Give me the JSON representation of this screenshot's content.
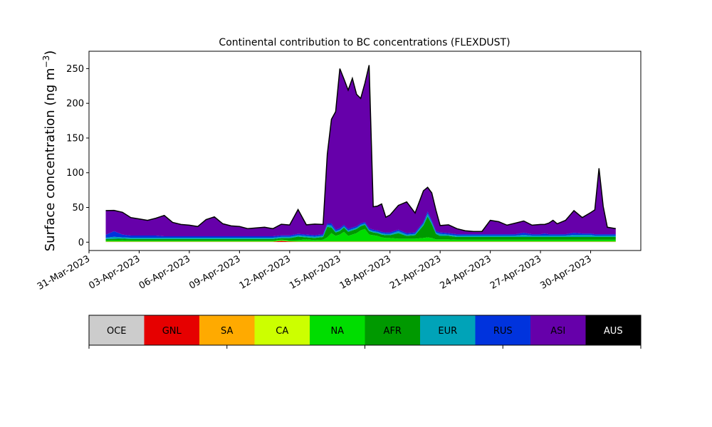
{
  "chart_data": {
    "type": "area",
    "stacked": true,
    "title": "Continental contribution to BC concentrations (FLEXDUST)",
    "ylabel": "Surface concentration (ng m",
    "ylabel_sup": "−3",
    "ylabel_close": ")",
    "xlabel": "",
    "x_range": [
      "2023-03-31",
      "2023-05-03"
    ],
    "ylim": [
      -12,
      275
    ],
    "yticks": [
      0,
      50,
      100,
      150,
      200,
      250
    ],
    "xticks": [
      {
        "date": "2023-03-31",
        "label": "31-Mar-2023"
      },
      {
        "date": "2023-04-03",
        "label": "03-Apr-2023"
      },
      {
        "date": "2023-04-06",
        "label": "06-Apr-2023"
      },
      {
        "date": "2023-04-09",
        "label": "09-Apr-2023"
      },
      {
        "date": "2023-04-12",
        "label": "12-Apr-2023"
      },
      {
        "date": "2023-04-15",
        "label": "15-Apr-2023"
      },
      {
        "date": "2023-04-18",
        "label": "18-Apr-2023"
      },
      {
        "date": "2023-04-21",
        "label": "21-Apr-2023"
      },
      {
        "date": "2023-04-24",
        "label": "24-Apr-2023"
      },
      {
        "date": "2023-04-27",
        "label": "27-Apr-2023"
      },
      {
        "date": "2023-04-30",
        "label": "30-Apr-2023"
      }
    ],
    "grid": false,
    "legend_placement": "bottom colorbar",
    "x": [
      "2023-04-01",
      "2023-04-01T12:00",
      "2023-04-02",
      "2023-04-02T12:00",
      "2023-04-03",
      "2023-04-03T12:00",
      "2023-04-04",
      "2023-04-04T12:00",
      "2023-04-05",
      "2023-04-05T12:00",
      "2023-04-06",
      "2023-04-06T12:00",
      "2023-04-07",
      "2023-04-07T12:00",
      "2023-04-08",
      "2023-04-08T12:00",
      "2023-04-09",
      "2023-04-09T12:00",
      "2023-04-10",
      "2023-04-10T12:00",
      "2023-04-11",
      "2023-04-11T12:00",
      "2023-04-12",
      "2023-04-12T12:00",
      "2023-04-13",
      "2023-04-13T12:00",
      "2023-04-14",
      "2023-04-14T06:00",
      "2023-04-14T12:00",
      "2023-04-14T18:00",
      "2023-04-15",
      "2023-04-15T06:00",
      "2023-04-15T12:00",
      "2023-04-15T18:00",
      "2023-04-16",
      "2023-04-16T06:00",
      "2023-04-16T12:00",
      "2023-04-16T18:00",
      "2023-04-17",
      "2023-04-17T06:00",
      "2023-04-17T12:00",
      "2023-04-17T18:00",
      "2023-04-18",
      "2023-04-18T12:00",
      "2023-04-19",
      "2023-04-19T12:00",
      "2023-04-20",
      "2023-04-20T06:00",
      "2023-04-20T12:00",
      "2023-04-20T18:00",
      "2023-04-21",
      "2023-04-21T12:00",
      "2023-04-22",
      "2023-04-22T12:00",
      "2023-04-23",
      "2023-04-23T12:00",
      "2023-04-24",
      "2023-04-24T12:00",
      "2023-04-25",
      "2023-04-25T12:00",
      "2023-04-26",
      "2023-04-26T12:00",
      "2023-04-27",
      "2023-04-27T06:00",
      "2023-04-27T12:00",
      "2023-04-27T18:00",
      "2023-04-28",
      "2023-04-28T12:00",
      "2023-04-29",
      "2023-04-29T12:00",
      "2023-04-30",
      "2023-04-30T06:00",
      "2023-04-30T12:00",
      "2023-04-30T18:00",
      "2023-05-01",
      "2023-05-01T12:00"
    ],
    "series": [
      {
        "name": "OCE",
        "color": "#cccccc",
        "values": [
          0.3,
          0.3,
          0.3,
          0.3,
          0.3,
          0.3,
          0.3,
          0.3,
          0.3,
          0.3,
          0.3,
          0.3,
          0.3,
          0.3,
          0.3,
          0.3,
          0.3,
          0.3,
          0.3,
          0.3,
          0.3,
          0.3,
          0.3,
          0.3,
          0.3,
          0.3,
          0.3,
          0.3,
          0.3,
          0.3,
          0.3,
          0.3,
          0.3,
          0.3,
          0.3,
          0.3,
          0.3,
          0.3,
          0.3,
          0.3,
          0.3,
          0.3,
          0.3,
          0.3,
          0.3,
          0.3,
          0.3,
          0.3,
          0.3,
          0.3,
          0.3,
          0.3,
          0.3,
          0.3,
          0.3,
          0.3,
          0.3,
          0.3,
          0.3,
          0.3,
          0.3,
          0.3,
          0.3,
          0.3,
          0.3,
          0.3,
          0.3,
          0.3,
          0.3,
          0.3,
          0.3,
          0.3,
          0.3,
          0.3,
          0.3,
          0.3
        ]
      },
      {
        "name": "GNL",
        "color": "#e60000",
        "values": [
          0.2,
          0.2,
          0.2,
          0.2,
          0.2,
          0.2,
          0.2,
          0.2,
          0.2,
          0.2,
          0.2,
          0.2,
          0.2,
          0.2,
          0.2,
          0.2,
          0.2,
          0.2,
          0.2,
          0.2,
          0.2,
          1.5,
          0.5,
          0.2,
          0.2,
          0.2,
          0.2,
          0.2,
          0.2,
          0.2,
          0.2,
          0.2,
          0.2,
          0.2,
          0.2,
          0.2,
          0.2,
          0.2,
          0.2,
          0.2,
          0.2,
          0.2,
          0.2,
          0.2,
          0.2,
          0.2,
          0.2,
          0.2,
          0.2,
          0.2,
          0.2,
          0.2,
          0.2,
          0.2,
          0.2,
          0.2,
          0.2,
          0.2,
          0.2,
          0.2,
          0.2,
          0.2,
          0.2,
          0.2,
          0.2,
          0.2,
          0.2,
          0.2,
          0.2,
          0.2,
          0.2,
          0.2,
          0.2,
          0.2,
          0.2,
          0.2
        ]
      },
      {
        "name": "SA",
        "color": "#ffaa00",
        "values": [
          0.2,
          0.2,
          0.2,
          0.2,
          0.2,
          0.2,
          0.2,
          0.2,
          0.2,
          0.2,
          0.2,
          0.2,
          0.2,
          0.2,
          0.2,
          0.2,
          0.2,
          0.2,
          0.2,
          0.2,
          0.2,
          0.2,
          0.2,
          0.2,
          0.2,
          0.2,
          0.2,
          0.2,
          0.2,
          0.2,
          0.2,
          0.2,
          0.2,
          0.2,
          0.2,
          0.2,
          0.2,
          0.2,
          0.2,
          0.2,
          0.2,
          0.2,
          0.2,
          0.2,
          0.2,
          0.2,
          0.2,
          0.2,
          0.2,
          0.2,
          0.2,
          0.2,
          0.2,
          0.2,
          0.2,
          0.2,
          0.2,
          0.2,
          0.2,
          0.2,
          0.2,
          0.2,
          0.2,
          0.2,
          0.2,
          0.2,
          0.2,
          0.2,
          0.2,
          0.2,
          0.2,
          0.2,
          0.2,
          0.2,
          0.2,
          0.2
        ]
      },
      {
        "name": "CA",
        "color": "#ccff00",
        "values": [
          0.3,
          0.3,
          0.3,
          0.3,
          0.3,
          0.3,
          0.3,
          0.3,
          0.3,
          0.3,
          0.3,
          0.3,
          0.3,
          0.3,
          0.3,
          0.3,
          0.3,
          0.3,
          0.3,
          0.3,
          0.3,
          0.3,
          0.3,
          0.3,
          0.3,
          0.3,
          0.3,
          0.3,
          0.3,
          0.3,
          0.3,
          0.3,
          0.3,
          0.3,
          0.3,
          0.3,
          0.3,
          0.3,
          0.3,
          0.3,
          0.3,
          0.3,
          0.3,
          0.3,
          0.3,
          0.3,
          0.3,
          0.3,
          0.3,
          0.3,
          0.3,
          0.3,
          0.3,
          0.3,
          0.3,
          0.3,
          0.3,
          0.3,
          0.3,
          0.3,
          0.3,
          0.3,
          0.3,
          0.3,
          0.3,
          0.3,
          0.3,
          0.3,
          0.3,
          0.3,
          0.3,
          0.3,
          0.3,
          0.3,
          0.3,
          0.3
        ]
      },
      {
        "name": "NA",
        "color": "#00dd00",
        "values": [
          1.5,
          1.8,
          2,
          1.5,
          1.5,
          1.5,
          1.5,
          1.5,
          1.5,
          1.5,
          1.5,
          1.5,
          1.5,
          1.5,
          1.5,
          1.5,
          1.5,
          1.5,
          1.5,
          1.5,
          1.5,
          1.5,
          1.5,
          2,
          3,
          2,
          2.5,
          6,
          12,
          8,
          10,
          14,
          8,
          10,
          12,
          16,
          18,
          10,
          9,
          8,
          6,
          5,
          5,
          4,
          4,
          4,
          5,
          6,
          5,
          3,
          3,
          3,
          2.5,
          2.5,
          2.5,
          2.5,
          2.5,
          2.5,
          2.5,
          2.5,
          2.5,
          2.5,
          2.5,
          2.5,
          2.5,
          2.5,
          2.5,
          2.5,
          2.5,
          2.5,
          2.5,
          2.5,
          2.5,
          2.5,
          2.5,
          2.5
        ]
      },
      {
        "name": "AFR",
        "color": "#009900",
        "values": [
          2,
          2,
          2,
          2,
          2,
          2,
          2,
          2,
          2,
          2,
          2,
          2,
          2,
          2,
          2,
          2,
          2,
          2,
          2,
          2,
          2,
          2,
          3,
          5,
          3,
          3,
          4,
          15,
          8,
          5,
          5,
          6,
          6,
          6,
          6,
          6,
          6,
          5,
          4,
          4,
          4,
          4,
          4,
          8,
          4,
          5,
          18,
          30,
          20,
          8,
          5,
          5,
          4,
          4,
          4,
          4,
          4,
          4,
          4,
          4,
          4,
          4,
          4,
          4,
          4,
          4,
          4,
          4,
          4,
          4,
          4,
          4,
          4,
          4,
          4,
          4
        ]
      },
      {
        "name": "EUR",
        "color": "#00a3b8",
        "values": [
          2,
          3,
          2,
          2,
          2,
          2,
          2,
          2,
          2,
          2,
          2,
          2,
          2,
          2,
          2,
          2,
          2,
          2,
          2,
          2,
          2,
          2,
          2,
          2,
          2,
          2,
          2,
          3,
          3,
          2,
          2,
          2,
          2,
          2,
          2,
          2,
          2,
          2,
          2,
          2,
          2,
          2,
          2,
          3,
          2,
          2,
          3,
          4,
          3,
          2,
          3,
          2,
          2,
          2,
          2,
          2,
          2,
          2,
          2,
          2,
          3,
          2,
          2,
          2,
          2,
          2,
          2,
          2,
          3,
          3,
          3,
          2,
          2,
          2,
          2,
          2
        ]
      },
      {
        "name": "RUS",
        "color": "#0033dd",
        "values": [
          4,
          8,
          4,
          3,
          3,
          3,
          3,
          2,
          2,
          2,
          2,
          2,
          2,
          2,
          2,
          2,
          2,
          2,
          2,
          2,
          2,
          2,
          2,
          2,
          2,
          2,
          2,
          2,
          3,
          2,
          2,
          2,
          2,
          2,
          2,
          2,
          2,
          2,
          2,
          2,
          2,
          2,
          2,
          2,
          2,
          2,
          2,
          3,
          2,
          2,
          2,
          2,
          2,
          2,
          2,
          2,
          2,
          2,
          2,
          2,
          3,
          2,
          2,
          3,
          2,
          2,
          2,
          2,
          3,
          2,
          2,
          2,
          2,
          2,
          2,
          2
        ]
      },
      {
        "name": "ASI",
        "color": "#6600aa",
        "values": [
          35,
          30,
          32,
          26,
          24,
          22,
          25,
          30,
          20,
          17,
          16,
          14,
          24,
          28,
          18,
          15,
          14,
          11,
          12,
          13,
          11,
          16,
          15,
          35,
          14,
          16,
          14,
          100,
          150,
          170,
          230,
          210,
          200,
          215,
          190,
          180,
          200,
          235,
          33,
          35,
          40,
          22,
          25,
          35,
          45,
          28,
          45,
          35,
          40,
          30,
          10,
          12,
          8,
          5,
          4,
          4,
          20,
          18,
          13,
          16,
          17,
          13,
          14,
          13,
          16,
          20,
          15,
          20,
          32,
          23,
          30,
          35,
          95,
          40,
          10,
          8
        ]
      },
      {
        "name": "AUS",
        "color": "#000000",
        "values": [
          0,
          0,
          0,
          0,
          0,
          0,
          0,
          0,
          0,
          0,
          0,
          0,
          0,
          0,
          0,
          0,
          0,
          0,
          0,
          0,
          0,
          0,
          0,
          0,
          0,
          0,
          0,
          0,
          0,
          0,
          0,
          0,
          0,
          0,
          0,
          0,
          0,
          0,
          0,
          0,
          0,
          0,
          0,
          0,
          0,
          0,
          0,
          0,
          0,
          0,
          0,
          0,
          0,
          0,
          0,
          0,
          0,
          0,
          0,
          0,
          0,
          0,
          0,
          0,
          0,
          0,
          0,
          0,
          0,
          0,
          0,
          0,
          0,
          0,
          0,
          0
        ]
      }
    ],
    "legend": [
      {
        "label": "OCE",
        "color": "#cccccc",
        "text_color": "#000000"
      },
      {
        "label": "GNL",
        "color": "#e60000",
        "text_color": "#000000"
      },
      {
        "label": "SA",
        "color": "#ffaa00",
        "text_color": "#000000"
      },
      {
        "label": "CA",
        "color": "#ccff00",
        "text_color": "#000000"
      },
      {
        "label": "NA",
        "color": "#00dd00",
        "text_color": "#000000"
      },
      {
        "label": "AFR",
        "color": "#009900",
        "text_color": "#000000"
      },
      {
        "label": "EUR",
        "color": "#00a3b8",
        "text_color": "#000000"
      },
      {
        "label": "RUS",
        "color": "#0033dd",
        "text_color": "#000000"
      },
      {
        "label": "ASI",
        "color": "#6600aa",
        "text_color": "#000000"
      },
      {
        "label": "AUS",
        "color": "#000000",
        "text_color": "#ffffff"
      }
    ]
  }
}
